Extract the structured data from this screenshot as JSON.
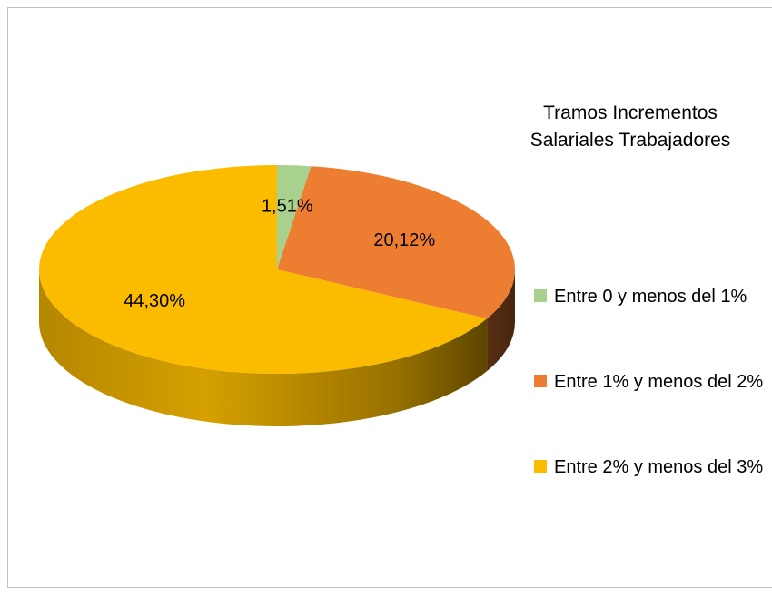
{
  "chart_data": {
    "type": "pie",
    "title": "Tramos Incrementos Salariales Trabajadores",
    "categories": [
      "Entre 0 y menos del 1%",
      "Entre 1% y menos del 2%",
      "Entre 2% y menos del 3%"
    ],
    "values": [
      1.51,
      20.12,
      44.3
    ],
    "value_labels": [
      "1,51%",
      "20,12%",
      "44,30%"
    ],
    "colors": [
      "#a9d18e",
      "#ed7d31",
      "#fbbc00"
    ],
    "legend": "right"
  }
}
